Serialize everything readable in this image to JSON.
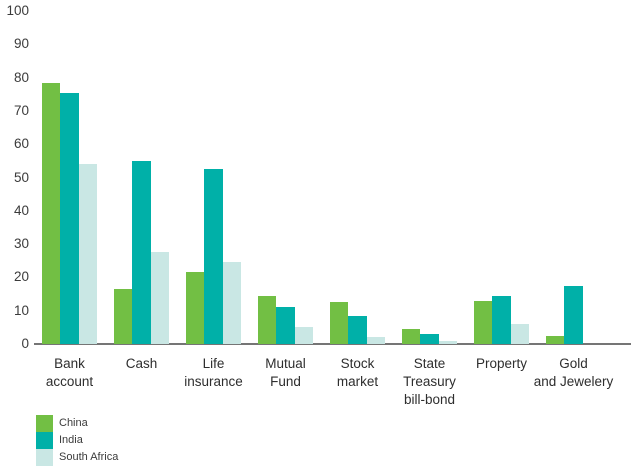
{
  "page": {
    "background_color": "#ffffff",
    "text_color": "#3b3b3b",
    "axis_line_color": "#757575"
  },
  "chart_data": {
    "type": "bar",
    "title": "",
    "xlabel": "",
    "ylabel": "",
    "categories": [
      "Bank\naccount",
      "Cash",
      "Life\ninsurance",
      "Mutual\nFund",
      "Stock\nmarket",
      "State\nTreasury\nbill-bond",
      "Property",
      "Gold\nand Jewelery"
    ],
    "series": [
      {
        "name": "China",
        "color": "#72BF44",
        "values": [
          78.5,
          16.5,
          21.5,
          14.5,
          12.5,
          4.5,
          13,
          2.5
        ]
      },
      {
        "name": "India",
        "color": "#00B0A8",
        "values": [
          75.5,
          55,
          52.5,
          11,
          8.5,
          3,
          14.5,
          17.5
        ]
      },
      {
        "name": "South Africa",
        "color": "#C9E7E4",
        "values": [
          54,
          27.5,
          24.5,
          5,
          2,
          1,
          6,
          0
        ]
      }
    ],
    "ylim": [
      0,
      100
    ],
    "yticks": [
      0,
      10,
      20,
      30,
      40,
      50,
      60,
      70,
      80,
      90,
      100
    ],
    "grid": false,
    "legend_position": "bottom-left"
  }
}
